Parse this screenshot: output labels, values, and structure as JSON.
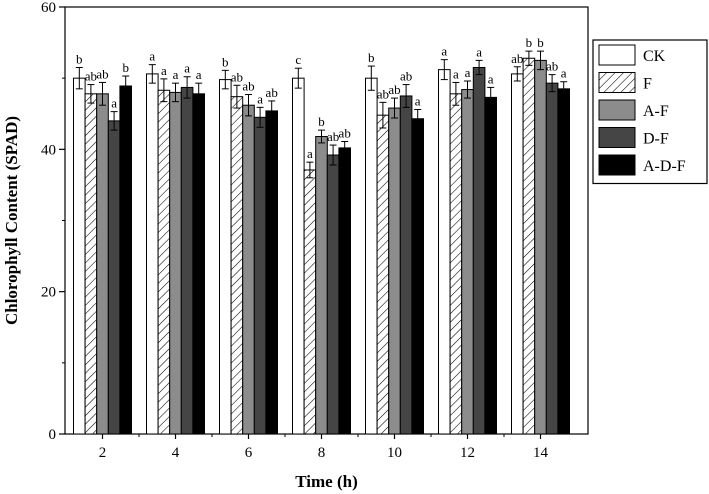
{
  "chart_data": {
    "type": "bar",
    "xlabel": "Time (h)",
    "ylabel": "Chlorophyll Content (SPAD)",
    "ylim": [
      0,
      60
    ],
    "yticks": [
      0,
      20,
      40,
      60
    ],
    "categories": [
      "2",
      "4",
      "6",
      "8",
      "10",
      "12",
      "14"
    ],
    "legend_position": "top-right",
    "series": [
      {
        "name": "CK",
        "style": "white",
        "values": [
          50.0,
          50.6,
          49.8,
          50.0,
          50.0,
          51.2,
          50.6
        ],
        "errors": [
          1.5,
          1.3,
          1.3,
          1.4,
          1.7,
          1.4,
          1.0
        ],
        "labels": [
          "b",
          "a",
          "b",
          "c",
          "b",
          "a",
          "ab"
        ]
      },
      {
        "name": "F",
        "style": "hatched",
        "values": [
          47.8,
          48.3,
          47.4,
          37.1,
          44.8,
          47.8,
          52.8
        ],
        "errors": [
          1.3,
          1.6,
          1.6,
          1.1,
          1.8,
          1.6,
          1.0
        ],
        "labels": [
          "ab",
          "a",
          "ab",
          "a",
          "ab",
          "a",
          "b"
        ]
      },
      {
        "name": "A-F",
        "style": "light-gray",
        "values": [
          47.8,
          48.0,
          46.2,
          41.8,
          45.8,
          48.4,
          52.5
        ],
        "errors": [
          1.6,
          1.3,
          1.5,
          0.9,
          1.4,
          1.2,
          1.3
        ],
        "labels": [
          "ab",
          "a",
          "ab",
          "b",
          "ab",
          "a",
          "b"
        ]
      },
      {
        "name": "D-F",
        "style": "dark-gray",
        "values": [
          44.0,
          48.7,
          44.5,
          39.2,
          47.5,
          51.5,
          49.3
        ],
        "errors": [
          1.3,
          1.5,
          1.4,
          1.4,
          1.6,
          1.0,
          1.2
        ],
        "labels": [
          "a",
          "a",
          "a",
          "ab",
          "ab",
          "a",
          "ab"
        ]
      },
      {
        "name": "A-D-F",
        "style": "black",
        "values": [
          48.9,
          47.8,
          45.4,
          40.2,
          44.3,
          47.3,
          48.5
        ],
        "errors": [
          1.4,
          1.5,
          1.4,
          0.9,
          1.3,
          1.4,
          1.0
        ],
        "labels": [
          "b",
          "a",
          "ab",
          "ab",
          "a",
          "a",
          "a"
        ]
      }
    ]
  }
}
